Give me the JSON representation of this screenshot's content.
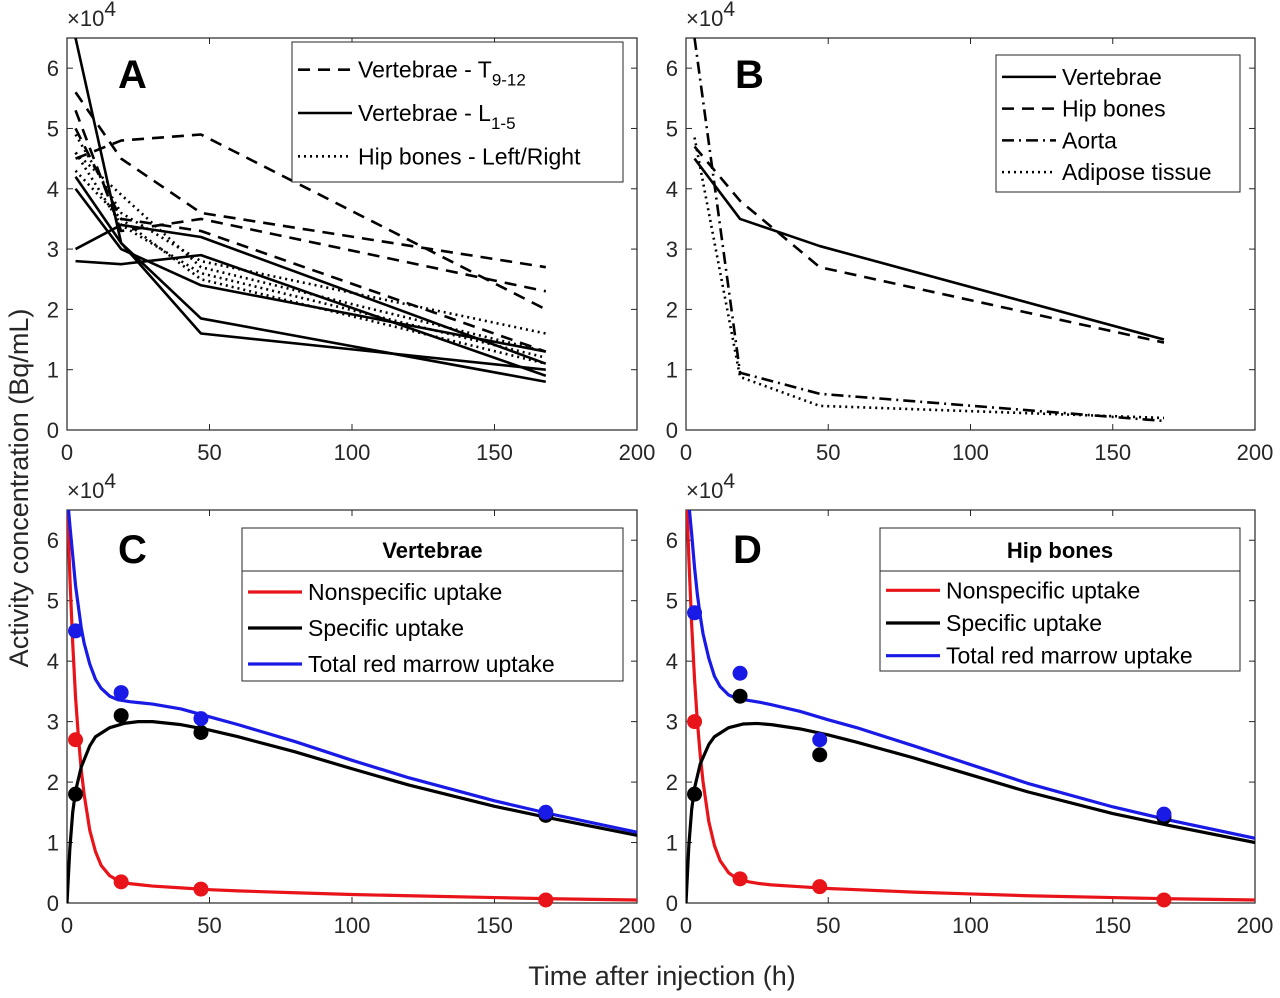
{
  "figure": {
    "ylabel": "Activity concentration (Bq/mL)",
    "xlabel": "Time after injection (h)"
  },
  "chart_data": [
    {
      "panel": "A",
      "type": "line",
      "xlim": [
        0,
        200
      ],
      "ylim": [
        0,
        6.5
      ],
      "y_multiplier": "×10^4",
      "xticks": [
        0,
        50,
        100,
        150,
        200
      ],
      "yticks": [
        0,
        1,
        2,
        3,
        4,
        5,
        6
      ],
      "legend_position": "top-right",
      "legend": [
        {
          "label": "Vertebrae - T",
          "sub": "9-12",
          "style": "dashed"
        },
        {
          "label": "Vertebrae - L",
          "sub": "1-5",
          "style": "solid"
        },
        {
          "label": "Hip bones - Left/Right",
          "sub": "",
          "style": "dotted"
        }
      ],
      "series": [
        {
          "group": "Vertebrae - T9-12",
          "style": "dashed",
          "x": [
            3,
            19,
            47,
            168
          ],
          "y": [
            5.6,
            4.5,
            3.6,
            2.7
          ]
        },
        {
          "group": "Vertebrae - T9-12",
          "style": "dashed",
          "x": [
            3,
            19,
            47,
            168
          ],
          "y": [
            5.3,
            3.3,
            3.5,
            2.3
          ]
        },
        {
          "group": "Vertebrae - T9-12",
          "style": "dashed",
          "x": [
            3,
            19,
            47,
            168
          ],
          "y": [
            4.5,
            4.8,
            4.9,
            2.0
          ]
        },
        {
          "group": "Vertebrae - T9-12",
          "style": "dashed",
          "x": [
            3,
            19,
            47,
            168
          ],
          "y": [
            5.0,
            3.5,
            3.3,
            1.3
          ]
        },
        {
          "group": "Vertebrae - L1-5",
          "style": "solid",
          "x": [
            3,
            19,
            47,
            168
          ],
          "y": [
            6.5,
            3.1,
            1.6,
            1.0
          ]
        },
        {
          "group": "Vertebrae - L1-5",
          "style": "solid",
          "x": [
            3,
            19,
            47,
            168
          ],
          "y": [
            4.2,
            3.1,
            1.85,
            0.8
          ]
        },
        {
          "group": "Vertebrae - L1-5",
          "style": "solid",
          "x": [
            3,
            19,
            47,
            168
          ],
          "y": [
            4.0,
            3.0,
            2.4,
            1.3
          ]
        },
        {
          "group": "Vertebrae - L1-5",
          "style": "solid",
          "x": [
            3,
            19,
            47,
            168
          ],
          "y": [
            3.0,
            3.4,
            3.2,
            1.1
          ]
        },
        {
          "group": "Vertebrae - L1-5",
          "style": "solid",
          "x": [
            3,
            19,
            47,
            168
          ],
          "y": [
            2.8,
            2.75,
            2.9,
            0.9
          ]
        },
        {
          "group": "Hip bones - Left/Right",
          "style": "dotted",
          "x": [
            3,
            19,
            47,
            168
          ],
          "y": [
            4.9,
            3.6,
            2.8,
            1.6
          ]
        },
        {
          "group": "Hip bones - Left/Right",
          "style": "dotted",
          "x": [
            3,
            19,
            47,
            168
          ],
          "y": [
            4.6,
            3.9,
            2.7,
            1.3
          ]
        },
        {
          "group": "Hip bones - Left/Right",
          "style": "dotted",
          "x": [
            3,
            19,
            47,
            168
          ],
          "y": [
            4.6,
            3.4,
            2.6,
            1.2
          ]
        },
        {
          "group": "Hip bones - Left/Right",
          "style": "dotted",
          "x": [
            3,
            19,
            47,
            168
          ],
          "y": [
            4.3,
            3.5,
            2.5,
            1.1
          ]
        }
      ]
    },
    {
      "panel": "B",
      "type": "line",
      "xlim": [
        0,
        200
      ],
      "ylim": [
        0,
        6.5
      ],
      "y_multiplier": "×10^4",
      "xticks": [
        0,
        50,
        100,
        150,
        200
      ],
      "yticks": [
        0,
        1,
        2,
        3,
        4,
        5,
        6
      ],
      "legend_position": "top-right",
      "legend": [
        {
          "label": "Vertebrae",
          "style": "solid"
        },
        {
          "label": "Hip bones",
          "style": "dashed"
        },
        {
          "label": "Aorta",
          "style": "dashdot"
        },
        {
          "label": "Adipose tissue",
          "style": "dotted"
        }
      ],
      "series": [
        {
          "name": "Vertebrae",
          "style": "solid",
          "x": [
            3,
            19,
            47,
            168
          ],
          "y": [
            4.5,
            3.5,
            3.05,
            1.5
          ]
        },
        {
          "name": "Hip bones",
          "style": "dashed",
          "x": [
            3,
            19,
            47,
            168
          ],
          "y": [
            4.7,
            3.8,
            2.7,
            1.45
          ]
        },
        {
          "name": "Aorta",
          "style": "dashdot",
          "x": [
            3,
            19,
            47,
            168
          ],
          "y": [
            6.5,
            0.95,
            0.6,
            0.15
          ]
        },
        {
          "name": "Adipose tissue",
          "style": "dotted",
          "x": [
            3,
            19,
            47,
            168
          ],
          "y": [
            4.85,
            0.88,
            0.4,
            0.2
          ]
        }
      ]
    },
    {
      "panel": "C",
      "type": "line",
      "xlim": [
        0,
        200
      ],
      "ylim": [
        0,
        6.5
      ],
      "y_multiplier": "×10^4",
      "xticks": [
        0,
        50,
        100,
        150,
        200
      ],
      "yticks": [
        0,
        1,
        2,
        3,
        4,
        5,
        6
      ],
      "legend_title": "Vertebrae",
      "legend_position": "top-right",
      "legend": [
        {
          "label": "Nonspecific uptake",
          "color": "#e8141a"
        },
        {
          "label": "Specific uptake",
          "color": "#000000"
        },
        {
          "label": "Total red marrow uptake",
          "color": "#1a1ae6"
        }
      ],
      "curves": [
        {
          "name": "Nonspecific uptake",
          "color": "#e8141a",
          "x": [
            0,
            1,
            2,
            3,
            4,
            5,
            6,
            8,
            10,
            12,
            15,
            18,
            22,
            26,
            30,
            40,
            50,
            60,
            80,
            100,
            120,
            150,
            170,
            200
          ],
          "y": [
            6.8,
            5.4,
            4.3,
            3.4,
            2.75,
            2.2,
            1.8,
            1.2,
            0.85,
            0.62,
            0.45,
            0.37,
            0.32,
            0.3,
            0.28,
            0.25,
            0.22,
            0.2,
            0.17,
            0.14,
            0.12,
            0.09,
            0.07,
            0.05
          ]
        },
        {
          "name": "Specific uptake",
          "color": "#000000",
          "x": [
            0,
            1,
            2,
            3,
            5,
            8,
            10,
            15,
            20,
            25,
            30,
            40,
            50,
            60,
            80,
            100,
            120,
            150,
            170,
            200
          ],
          "y": [
            0,
            0.9,
            1.5,
            1.85,
            2.25,
            2.6,
            2.75,
            2.9,
            2.97,
            3.0,
            3.0,
            2.95,
            2.86,
            2.75,
            2.5,
            2.22,
            1.95,
            1.6,
            1.4,
            1.12
          ]
        },
        {
          "name": "Total red marrow uptake",
          "color": "#1a1ae6",
          "x": [
            0,
            1,
            2,
            3,
            4,
            5,
            6,
            8,
            10,
            12,
            15,
            18,
            22,
            26,
            30,
            40,
            50,
            60,
            80,
            100,
            120,
            150,
            170,
            200
          ],
          "y": [
            6.8,
            6.25,
            5.75,
            5.25,
            4.9,
            4.55,
            4.3,
            3.95,
            3.7,
            3.55,
            3.42,
            3.36,
            3.33,
            3.31,
            3.29,
            3.21,
            3.08,
            2.95,
            2.67,
            2.36,
            2.07,
            1.69,
            1.47,
            1.17
          ]
        }
      ],
      "points": [
        {
          "series": "Nonspecific uptake",
          "color": "#e8141a",
          "x": [
            3,
            19,
            47,
            168
          ],
          "y": [
            2.7,
            0.35,
            0.23,
            0.05
          ]
        },
        {
          "series": "Specific uptake",
          "color": "#000000",
          "x": [
            3,
            19,
            47,
            168
          ],
          "y": [
            1.8,
            3.1,
            2.82,
            1.45
          ]
        },
        {
          "series": "Total red marrow uptake",
          "color": "#1a1ae6",
          "x": [
            3,
            19,
            47,
            168
          ],
          "y": [
            4.5,
            3.48,
            3.05,
            1.5
          ]
        }
      ]
    },
    {
      "panel": "D",
      "type": "line",
      "xlim": [
        0,
        200
      ],
      "ylim": [
        0,
        6.5
      ],
      "y_multiplier": "×10^4",
      "xticks": [
        0,
        50,
        100,
        150,
        200
      ],
      "yticks": [
        0,
        1,
        2,
        3,
        4,
        5,
        6
      ],
      "legend_title": "Hip bones",
      "legend_position": "top-right",
      "legend": [
        {
          "label": "Nonspecific uptake",
          "color": "#e8141a"
        },
        {
          "label": "Specific uptake",
          "color": "#000000"
        },
        {
          "label": "Total red marrow uptake",
          "color": "#1a1ae6"
        }
      ],
      "curves": [
        {
          "name": "Nonspecific uptake",
          "color": "#e8141a",
          "x": [
            0,
            1,
            2,
            3,
            4,
            5,
            6,
            8,
            10,
            12,
            15,
            18,
            22,
            26,
            30,
            40,
            50,
            60,
            80,
            100,
            120,
            150,
            170,
            200
          ],
          "y": [
            7.0,
            5.7,
            4.6,
            3.7,
            3.0,
            2.45,
            2.0,
            1.35,
            0.95,
            0.7,
            0.5,
            0.4,
            0.35,
            0.32,
            0.3,
            0.27,
            0.24,
            0.22,
            0.18,
            0.15,
            0.12,
            0.09,
            0.07,
            0.05
          ]
        },
        {
          "name": "Specific uptake",
          "color": "#000000",
          "x": [
            0,
            1,
            2,
            3,
            5,
            8,
            10,
            15,
            20,
            25,
            30,
            40,
            50,
            60,
            80,
            100,
            120,
            150,
            170,
            200
          ],
          "y": [
            0,
            0.95,
            1.55,
            1.9,
            2.3,
            2.62,
            2.75,
            2.9,
            2.96,
            2.97,
            2.95,
            2.88,
            2.78,
            2.66,
            2.4,
            2.12,
            1.84,
            1.48,
            1.28,
            1.0
          ]
        },
        {
          "name": "Total red marrow uptake",
          "color": "#1a1ae6",
          "x": [
            0,
            1,
            2,
            3,
            4,
            5,
            6,
            8,
            10,
            12,
            15,
            18,
            22,
            26,
            30,
            40,
            50,
            60,
            80,
            100,
            120,
            150,
            170,
            200
          ],
          "y": [
            7.0,
            6.6,
            6.1,
            5.55,
            5.1,
            4.75,
            4.45,
            4.05,
            3.75,
            3.58,
            3.44,
            3.38,
            3.35,
            3.32,
            3.28,
            3.17,
            3.03,
            2.9,
            2.6,
            2.29,
            1.98,
            1.59,
            1.37,
            1.07
          ]
        }
      ],
      "points": [
        {
          "series": "Nonspecific uptake",
          "color": "#e8141a",
          "x": [
            3,
            19,
            47,
            168
          ],
          "y": [
            3.0,
            0.4,
            0.27,
            0.05
          ]
        },
        {
          "series": "Specific uptake",
          "color": "#000000",
          "x": [
            3,
            19,
            47,
            168
          ],
          "y": [
            1.8,
            3.42,
            2.45,
            1.42
          ]
        },
        {
          "series": "Total red marrow uptake",
          "color": "#1a1ae6",
          "x": [
            3,
            19,
            47,
            168
          ],
          "y": [
            4.8,
            3.8,
            2.7,
            1.47
          ]
        }
      ]
    }
  ]
}
